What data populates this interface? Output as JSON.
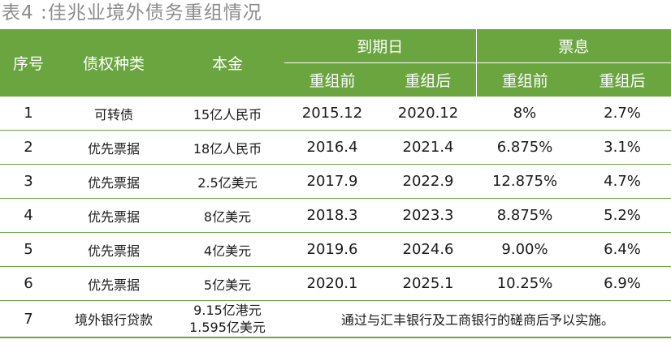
{
  "caption": "表4 :佳兆业境外债务重组情况",
  "headers": {
    "seq": "序号",
    "type": "债权种类",
    "principal": "本金",
    "due": "到期日",
    "coupon": "票息",
    "before": "重组前",
    "after": "重组后"
  },
  "rows": [
    {
      "seq": "1",
      "type": "可转债",
      "principal": "15亿人民币",
      "due_before": "2015.12",
      "due_after": "2020.12",
      "coupon_before": "8%",
      "coupon_after": "2.7%"
    },
    {
      "seq": "2",
      "type": "优先票据",
      "principal": "18亿人民币",
      "due_before": "2016.4",
      "due_after": "2021.4",
      "coupon_before": "6.875%",
      "coupon_after": "3.1%"
    },
    {
      "seq": "3",
      "type": "优先票据",
      "principal": "2.5亿美元",
      "due_before": "2017.9",
      "due_after": "2022.9",
      "coupon_before": "12.875%",
      "coupon_after": "4.7%"
    },
    {
      "seq": "4",
      "type": "优先票据",
      "principal": "8亿美元",
      "due_before": "2018.3",
      "due_after": "2023.3",
      "coupon_before": "8.875%",
      "coupon_after": "5.2%"
    },
    {
      "seq": "5",
      "type": "优先票据",
      "principal": "4亿美元",
      "due_before": "2019.6",
      "due_after": "2024.6",
      "coupon_before": "9.00%",
      "coupon_after": "6.4%"
    },
    {
      "seq": "6",
      "type": "优先票据",
      "principal": "5亿美元",
      "due_before": "2020.1",
      "due_after": "2025.1",
      "coupon_before": "10.25%",
      "coupon_after": "6.9%"
    }
  ],
  "last_row": {
    "seq": "7",
    "type": "境外银行贷款",
    "principal_line1": "9.15亿港元",
    "principal_line2": "1.595亿美元",
    "note": "通过与汇丰银行及工商银行的磋商后予以实施。"
  },
  "colors": {
    "header_green": "#6aa540",
    "caption_gray": "#8c8c8c"
  }
}
